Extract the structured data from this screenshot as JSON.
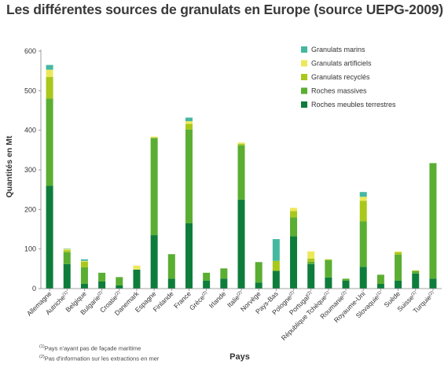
{
  "title": "Les différentes sources de granulats en Europe (source UEPG-2009)",
  "chart_data": {
    "type": "bar",
    "stacked": true,
    "xlabel": "Pays",
    "ylabel": "Quantités en Mt",
    "ylim": [
      0,
      600
    ],
    "yticks": [
      0,
      100,
      200,
      300,
      400,
      500,
      600
    ],
    "legend_position": "top-right",
    "grid": false,
    "categories": [
      {
        "name": "Allemagne",
        "note": ""
      },
      {
        "name": "Autriche",
        "note": "(1)"
      },
      {
        "name": "Belgique",
        "note": ""
      },
      {
        "name": "Bulgarie",
        "note": "(2)"
      },
      {
        "name": "Croatie",
        "note": "(2)"
      },
      {
        "name": "Danemark",
        "note": ""
      },
      {
        "name": "Espagne",
        "note": ""
      },
      {
        "name": "Finlande",
        "note": ""
      },
      {
        "name": "France",
        "note": ""
      },
      {
        "name": "Grèce",
        "note": "(2)"
      },
      {
        "name": "Irlande",
        "note": ""
      },
      {
        "name": "Italie",
        "note": "(2)"
      },
      {
        "name": "Norvège",
        "note": ""
      },
      {
        "name": "Pays-Bas",
        "note": ""
      },
      {
        "name": "Pologne",
        "note": "(2)"
      },
      {
        "name": "Portugal",
        "note": "(2)"
      },
      {
        "name": "République Tchèque",
        "note": "(1)"
      },
      {
        "name": "Roumanie",
        "note": "(2)"
      },
      {
        "name": "Royaume-Uni",
        "note": ""
      },
      {
        "name": "Slovaquie",
        "note": "(1)"
      },
      {
        "name": "Suède",
        "note": ""
      },
      {
        "name": "Suisse",
        "note": "(1)"
      },
      {
        "name": "Turquie",
        "note": "(2)"
      }
    ],
    "series": [
      {
        "name": "Roches meubles terrestres",
        "color": "#0e7d3c",
        "values": [
          260,
          62,
          12,
          18,
          8,
          48,
          135,
          25,
          165,
          20,
          25,
          225,
          15,
          45,
          132,
          62,
          28,
          20,
          55,
          12,
          20,
          38,
          25
        ]
      },
      {
        "name": "Roches massives",
        "color": "#5aae32",
        "values": [
          220,
          30,
          42,
          22,
          21,
          0,
          245,
          62,
          237,
          20,
          26,
          137,
          52,
          0,
          48,
          6,
          44,
          5,
          115,
          23,
          66,
          6,
          292
        ]
      },
      {
        "name": "Granulats recyclés",
        "color": "#a8c81c",
        "values": [
          55,
          5,
          14,
          0,
          0,
          0,
          2,
          0,
          14,
          0,
          0,
          4,
          0,
          25,
          16,
          8,
          2,
          0,
          52,
          0,
          6,
          2,
          0
        ]
      },
      {
        "name": "Granulats artificiels",
        "color": "#ede85a",
        "values": [
          18,
          3,
          2,
          0,
          0,
          10,
          2,
          0,
          7,
          0,
          0,
          3,
          0,
          0,
          8,
          18,
          0,
          0,
          10,
          0,
          2,
          0,
          0
        ]
      },
      {
        "name": "Granulats marins",
        "color": "#45b8a0",
        "values": [
          12,
          1,
          4,
          0,
          0,
          0,
          0,
          0,
          9,
          0,
          0,
          0,
          0,
          55,
          0,
          0,
          0,
          0,
          12,
          0,
          0,
          0,
          0
        ]
      }
    ]
  },
  "footnotes": [
    {
      "mark": "(1)",
      "text": "Pays n'ayant pas de façade maritime"
    },
    {
      "mark": "(2)",
      "text": "Pas d'information sur les extractions en mer"
    }
  ]
}
